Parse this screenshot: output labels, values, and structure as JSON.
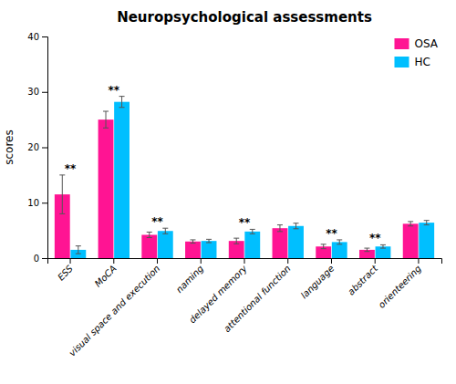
{
  "chart_data": {
    "type": "bar",
    "title": "Neuropsychological assessments",
    "y_label": "scores",
    "categories": [
      "ESS",
      "MoCA",
      "visual space and execution",
      "naming",
      "delayed memory",
      "attentional function",
      "language",
      "abstract",
      "orienteering"
    ],
    "series": [
      {
        "name": "OSA",
        "color": "#FF1493",
        "values": [
          11.5,
          25.0,
          4.2,
          3.0,
          3.1,
          5.4,
          2.1,
          1.5,
          6.2
        ],
        "errors": [
          3.5,
          1.5,
          0.5,
          0.3,
          0.5,
          0.6,
          0.4,
          0.3,
          0.4
        ]
      },
      {
        "name": "HC",
        "color": "#00BFFF",
        "values": [
          1.5,
          28.2,
          4.9,
          3.1,
          4.8,
          5.8,
          2.9,
          2.1,
          6.4
        ],
        "errors": [
          0.7,
          1.0,
          0.5,
          0.3,
          0.4,
          0.5,
          0.4,
          0.3,
          0.4
        ]
      }
    ],
    "annotations": [
      {
        "text": "**",
        "x": "ESS"
      },
      {
        "text": "**",
        "x": "MoCA"
      },
      {
        "text": "**",
        "x": "visual space and execution"
      },
      {
        "text": "**",
        "x": "delayed memory"
      },
      {
        "text": "**",
        "x": "language"
      },
      {
        "text": "**",
        "x": "abstract"
      }
    ],
    "ylim": [
      0,
      40
    ],
    "yticks": [
      0,
      10,
      20,
      30,
      40
    ],
    "grid": false,
    "legend": "upper right"
  }
}
